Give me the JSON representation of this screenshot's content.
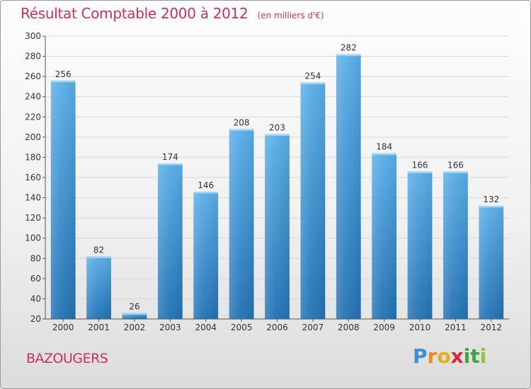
{
  "header": {
    "title": "Résultat Comptable 2000 à 2012",
    "unit": "(en milliers d'€)"
  },
  "footer": {
    "commune": "BAZOUGERS",
    "logo": {
      "letters": [
        "P",
        "r",
        "o",
        "x",
        "i",
        "t",
        "i"
      ],
      "colors": [
        "#3a8fd8",
        "#f08a1c",
        "#e0b021",
        "#d8263d",
        "#3fa640",
        "#3fa640",
        "#8dc63f"
      ]
    }
  },
  "colors": {
    "accent": "#c8305e",
    "bar_top": "#5aaee8",
    "bar_bottom": "#2271b3",
    "grid": "#d8d8d8",
    "axis": "#555555"
  },
  "chart_data": {
    "type": "bar",
    "categories": [
      "2000",
      "2001",
      "2002",
      "2003",
      "2004",
      "2005",
      "2006",
      "2007",
      "2008",
      "2009",
      "2010",
      "2011",
      "2012"
    ],
    "values": [
      256,
      82,
      26,
      174,
      146,
      208,
      203,
      254,
      282,
      184,
      166,
      166,
      132
    ],
    "data_labels": [
      "256",
      "82",
      "26",
      "174",
      "146",
      "208",
      "203",
      "254",
      "282",
      "184",
      "166",
      "166",
      "132"
    ],
    "ylim": [
      20,
      300
    ],
    "yticks": [
      20,
      40,
      60,
      80,
      100,
      120,
      140,
      160,
      180,
      200,
      220,
      240,
      260,
      280,
      300
    ],
    "ytick_labels": [
      "20",
      "40",
      "60",
      "80",
      "100",
      "120",
      "140",
      "160",
      "180",
      "200",
      "220",
      "240",
      "260",
      "280",
      "300"
    ],
    "grid": true,
    "legend": "none"
  }
}
